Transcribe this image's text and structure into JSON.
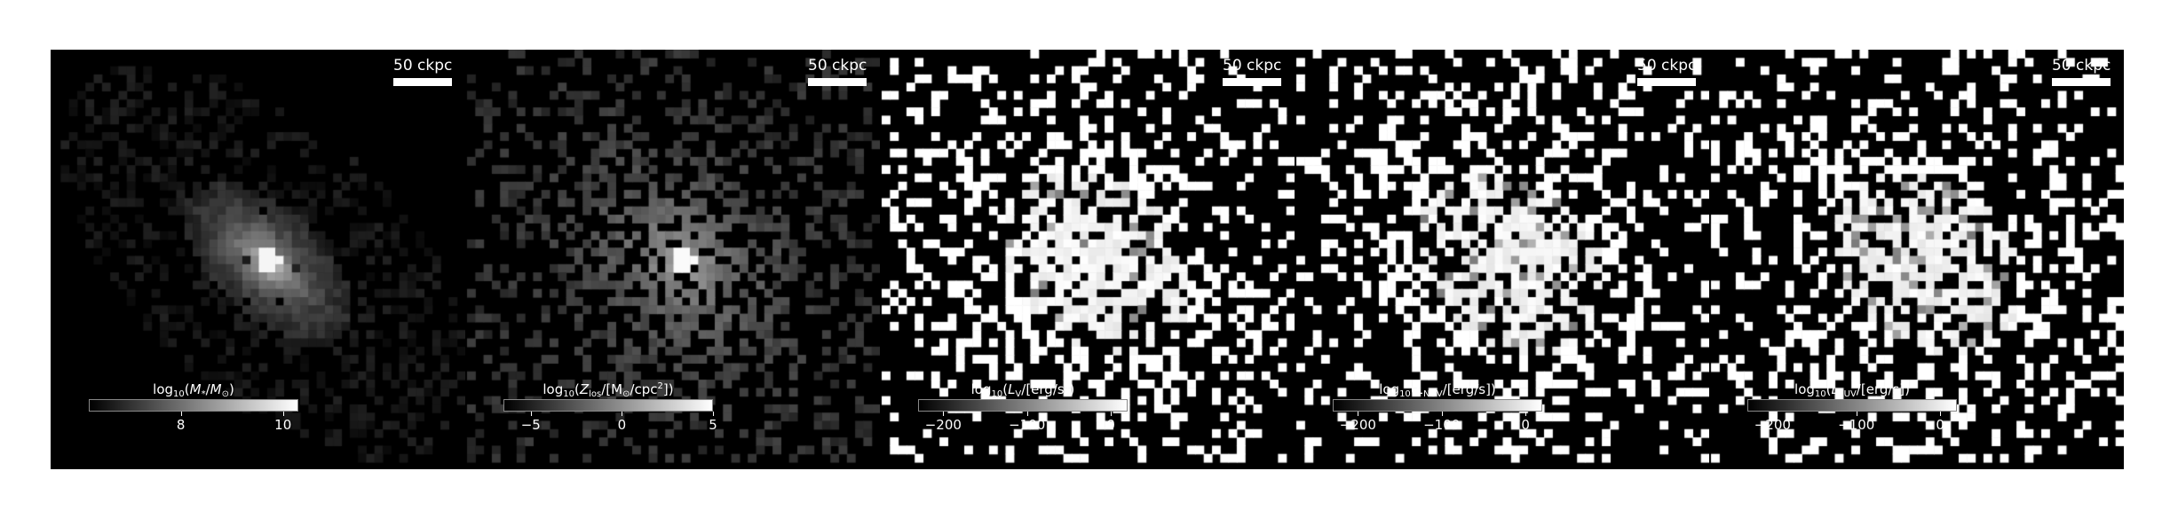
{
  "panels": [
    {
      "scale_label": "50 ckpc",
      "colorbar": {
        "title_parts": [
          "log",
          "10",
          "(",
          "M",
          "*",
          "/",
          "M",
          "⊙",
          ")"
        ],
        "ticks": [
          {
            "label": "8",
            "value": 8
          },
          {
            "label": "10",
            "value": 10
          }
        ],
        "range": [
          6.2,
          10.3
        ]
      },
      "icon": "stellar-mass-map"
    },
    {
      "scale_label": "50 ckpc",
      "colorbar": {
        "title_parts": [
          "log",
          "10",
          "(",
          "Z",
          "los",
          "/[M",
          "⊙",
          "/cpc",
          "2",
          "])"
        ],
        "ticks": [
          {
            "label": "−5",
            "value": -5
          },
          {
            "label": "0",
            "value": 0
          },
          {
            "label": "5",
            "value": 5
          }
        ],
        "range": [
          -6.5,
          5
        ]
      },
      "icon": "metal-column-map"
    },
    {
      "scale_label": "50 ckpc",
      "colorbar": {
        "title_parts": [
          "log",
          "10",
          "(",
          "L",
          "V",
          "/[erg/s])"
        ],
        "ticks": [
          {
            "label": "−200",
            "value": -200
          },
          {
            "label": "−100",
            "value": -100
          },
          {
            "label": "0",
            "value": 0
          }
        ],
        "range": [
          -230,
          20
        ]
      },
      "icon": "v-band-luminosity-map"
    },
    {
      "scale_label": "50 ckpc",
      "colorbar": {
        "title_parts": [
          "log",
          "10",
          "(",
          "L",
          "NUV",
          "/[erg/s])"
        ],
        "ticks": [
          {
            "label": "−200",
            "value": -200
          },
          {
            "label": "−100",
            "value": -100
          },
          {
            "label": "0",
            "value": 0
          }
        ],
        "range": [
          -230,
          20
        ]
      },
      "icon": "nuv-luminosity-map"
    },
    {
      "scale_label": "50 ckpc",
      "colorbar": {
        "title_parts": [
          "log",
          "10",
          "(",
          "L",
          "FUV",
          "/[erg/s])"
        ],
        "ticks": [
          {
            "label": "−200",
            "value": -200
          },
          {
            "label": "−100",
            "value": -100
          },
          {
            "label": "0",
            "value": 0
          }
        ],
        "range": [
          -230,
          20
        ]
      },
      "icon": "fuv-luminosity-map"
    }
  ]
}
